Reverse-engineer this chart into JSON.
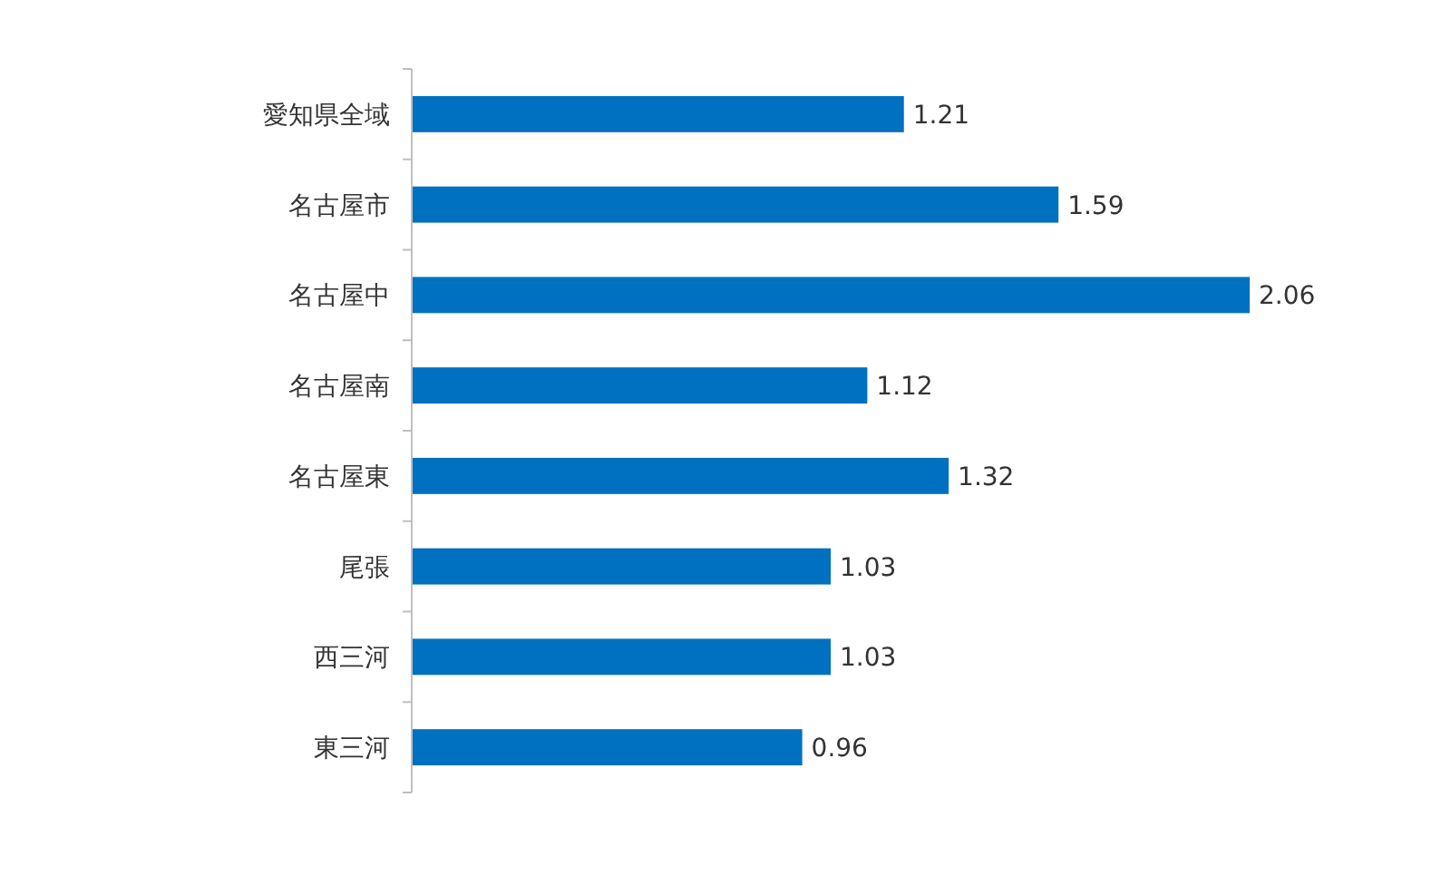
{
  "chart_data": {
    "type": "bar",
    "orientation": "horizontal",
    "categories": [
      "愛知県全域",
      "名古屋市",
      "名古屋中",
      "名古屋南",
      "名古屋東",
      "尾張",
      "西三河",
      "東三河"
    ],
    "values": [
      1.21,
      1.59,
      2.06,
      1.12,
      1.32,
      1.03,
      1.03,
      0.96
    ],
    "color": "#0070c0",
    "data_labels": true
  }
}
